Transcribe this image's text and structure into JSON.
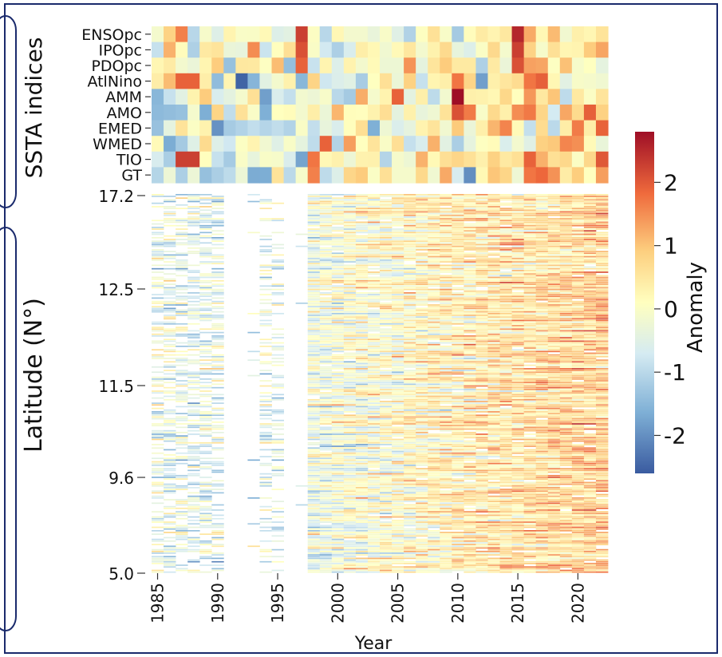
{
  "chart_data": {
    "type": "heatmap",
    "panels": [
      {
        "name": "ssta-indices-panel",
        "ylabel": "SSTA indices",
        "rows": [
          "ENSOpc",
          "IPOpc",
          "PDOpc",
          "AtlNino",
          "AMM",
          "AMO",
          "EMED",
          "WMED",
          "TIO",
          "GT"
        ],
        "years": [
          1985,
          2022
        ],
        "cell_notes": "Annual anomaly per index, 1985–2022, on the shared Anomaly color scale; values estimated visually (e.g. strong positive ENSOpc/IPOpc around 1997 and 2015, strong positive AMM near 2010, strong negative AtlNino near 1992)."
      },
      {
        "name": "latitude-panel",
        "ylabel": "Latitude (N°)",
        "xlabel": "Year",
        "x_ticks": [
          "1985",
          "1990",
          "1995",
          "2000",
          "2005",
          "2010",
          "2015",
          "2020"
        ],
        "y_ticks": [
          "5.0",
          "9.6",
          "11.5",
          "12.5",
          "17.2"
        ],
        "ylim": [
          5.0,
          17.2
        ],
        "data_gaps": "No data roughly 1991–1993 and 1996–1997; sparse coverage 1985–1995."
      }
    ],
    "colorbar": {
      "label": "Anomaly",
      "ticks": [
        "2",
        "1",
        "0",
        "-1",
        "-2"
      ],
      "range": [
        -2.6,
        2.8
      ],
      "colormap": "RdYlBu_r"
    }
  },
  "colors": {
    "frame_border": "#1a2a6c",
    "cmap_neg": "#3a5ba0",
    "cmap_zero": "#ffffbf",
    "cmap_pos": "#9e0e26"
  }
}
